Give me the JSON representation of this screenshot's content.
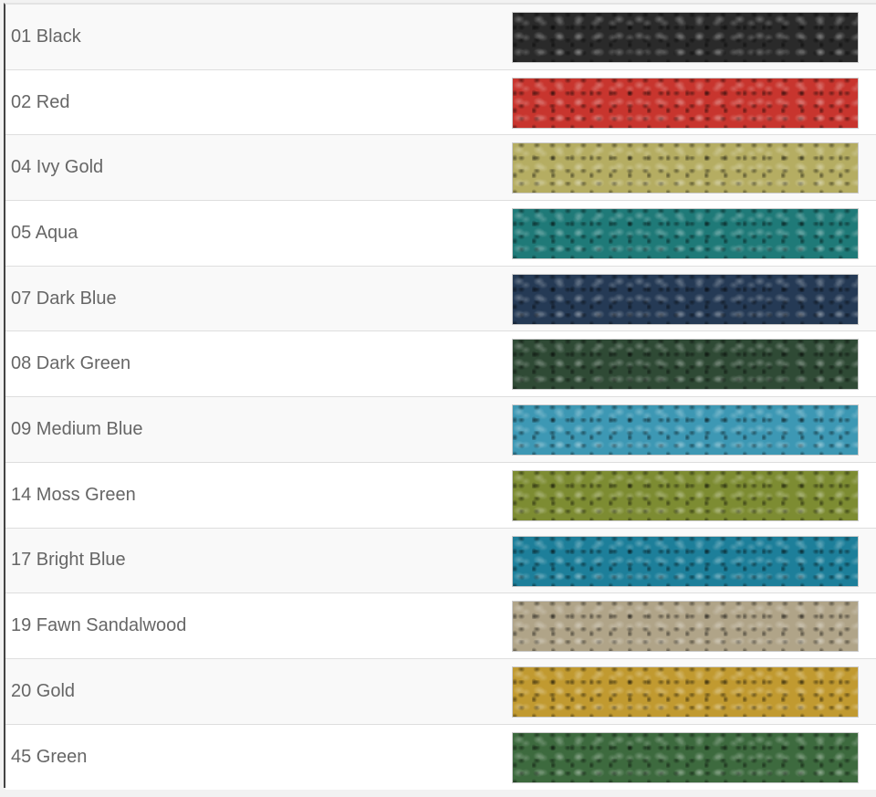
{
  "colors": [
    {
      "label": "01 Black",
      "swatch_color": "#2a2a2a"
    },
    {
      "label": "02 Red",
      "swatch_color": "#c8352e"
    },
    {
      "label": "04 Ivy Gold",
      "swatch_color": "#b5ad62"
    },
    {
      "label": "05 Aqua",
      "swatch_color": "#1f7a78"
    },
    {
      "label": "07 Dark Blue",
      "swatch_color": "#253a55"
    },
    {
      "label": "08 Dark Green",
      "swatch_color": "#2f4a35"
    },
    {
      "label": "09 Medium Blue",
      "swatch_color": "#3d98b4"
    },
    {
      "label": "14 Moss Green",
      "swatch_color": "#7d8c32"
    },
    {
      "label": "17 Bright Blue",
      "swatch_color": "#1d7f9a"
    },
    {
      "label": "19 Fawn Sandalwood",
      "swatch_color": "#b0a488"
    },
    {
      "label": "20 Gold",
      "swatch_color": "#c19a30"
    },
    {
      "label": "45 Green",
      "swatch_color": "#3d6a3e"
    }
  ]
}
